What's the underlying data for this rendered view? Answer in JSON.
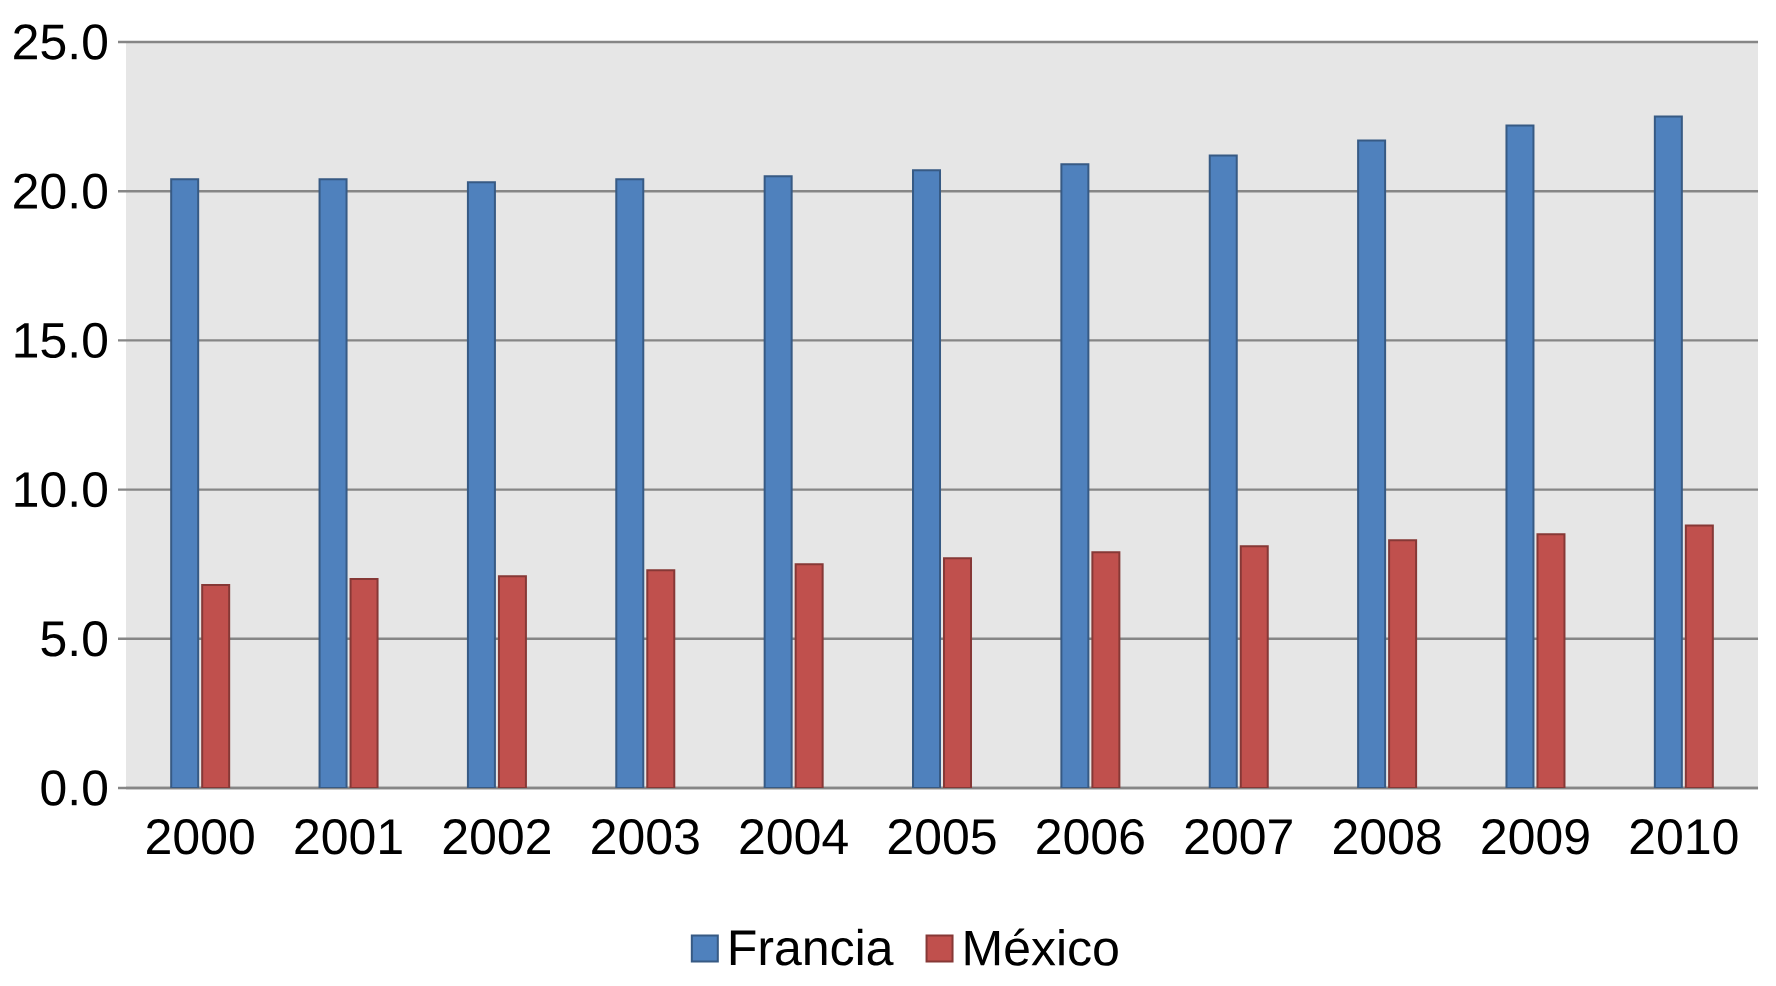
{
  "chart_data": {
    "type": "bar",
    "categories": [
      "2000",
      "2001",
      "2002",
      "2003",
      "2004",
      "2005",
      "2006",
      "2007",
      "2008",
      "2009",
      "2010"
    ],
    "series": [
      {
        "name": "Francia",
        "color": "#4f81bd",
        "values": [
          20.4,
          20.4,
          20.3,
          20.4,
          20.5,
          20.7,
          20.9,
          21.2,
          21.7,
          22.2,
          22.5
        ]
      },
      {
        "name": "México",
        "color": "#c0504d",
        "values": [
          6.8,
          7.0,
          7.1,
          7.3,
          7.5,
          7.7,
          7.9,
          8.1,
          8.3,
          8.5,
          8.8
        ]
      }
    ],
    "ylim": [
      0,
      25
    ],
    "yticks": [
      {
        "value": 0,
        "label": "0.0"
      },
      {
        "value": 5,
        "label": "5.0"
      },
      {
        "value": 10,
        "label": "10.0"
      },
      {
        "value": 15,
        "label": "15.0"
      },
      {
        "value": 20,
        "label": "20.0"
      },
      {
        "value": 25,
        "label": "25.0"
      }
    ],
    "grid": "y",
    "legend": "bottom"
  }
}
